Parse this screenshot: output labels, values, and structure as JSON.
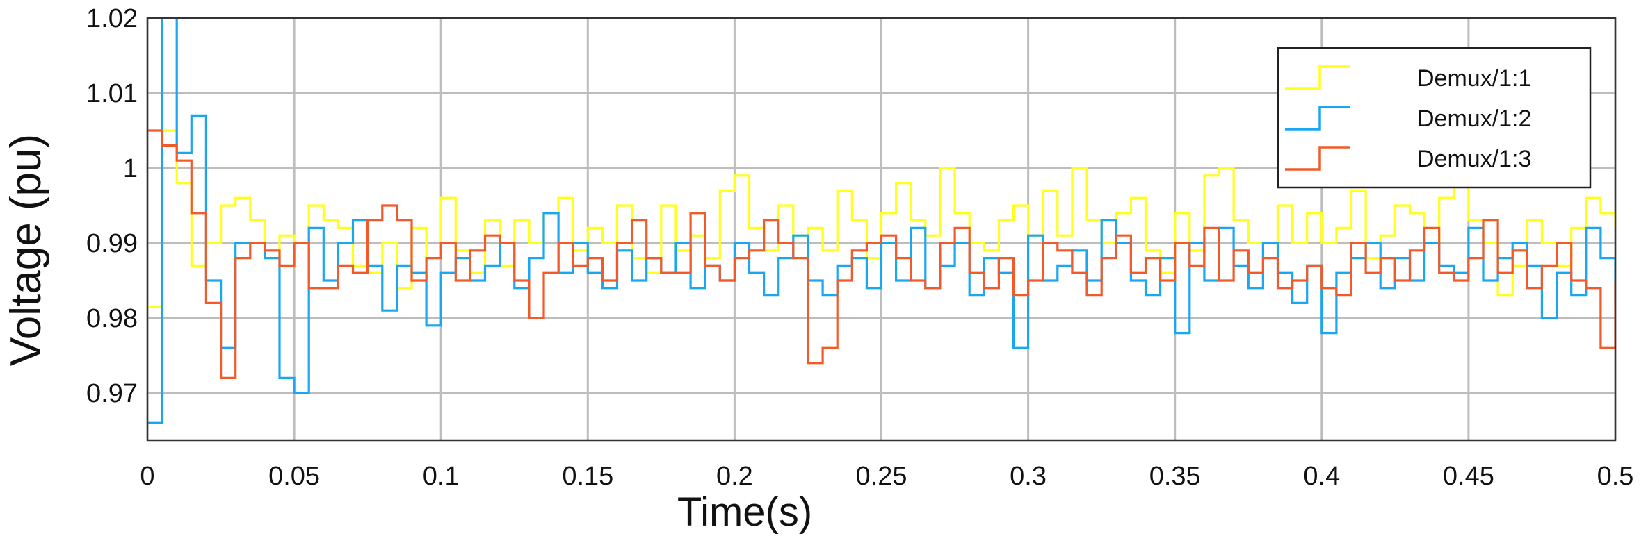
{
  "chart_data": {
    "type": "line",
    "title": "",
    "xlabel": "Time(s)",
    "ylabel": "Voltage (pu)",
    "xlim": [
      0,
      0.5
    ],
    "ylim": [
      0.9637,
      1.02
    ],
    "grid": true,
    "legend_position": "top-right",
    "x_ticks": [
      {
        "value": 0,
        "label": "0"
      },
      {
        "value": 0.05,
        "label": "0.05"
      },
      {
        "value": 0.1,
        "label": "0.1"
      },
      {
        "value": 0.15,
        "label": "0.15"
      },
      {
        "value": 0.2,
        "label": "0.2"
      },
      {
        "value": 0.25,
        "label": "0.25"
      },
      {
        "value": 0.3,
        "label": "0.3"
      },
      {
        "value": 0.35,
        "label": "0.35"
      },
      {
        "value": 0.4,
        "label": "0.4"
      },
      {
        "value": 0.45,
        "label": "0.45"
      },
      {
        "value": 0.5,
        "label": "0.5"
      }
    ],
    "y_ticks": [
      {
        "value": 0.97,
        "label": "0.97"
      },
      {
        "value": 0.98,
        "label": "0.98"
      },
      {
        "value": 0.99,
        "label": "0.99"
      },
      {
        "value": 1.0,
        "label": "1"
      },
      {
        "value": 1.01,
        "label": "1.01"
      },
      {
        "value": 1.02,
        "label": "1.02"
      }
    ],
    "x": [
      0,
      0.005,
      0.01,
      0.015,
      0.02,
      0.025,
      0.03,
      0.035,
      0.04,
      0.045,
      0.05,
      0.055,
      0.06,
      0.065,
      0.07,
      0.075,
      0.08,
      0.085,
      0.09,
      0.095,
      0.1,
      0.105,
      0.11,
      0.115,
      0.12,
      0.125,
      0.13,
      0.135,
      0.14,
      0.145,
      0.15,
      0.155,
      0.16,
      0.165,
      0.17,
      0.175,
      0.18,
      0.185,
      0.19,
      0.195,
      0.2,
      0.205,
      0.21,
      0.215,
      0.22,
      0.225,
      0.23,
      0.235,
      0.24,
      0.245,
      0.25,
      0.255,
      0.26,
      0.265,
      0.27,
      0.275,
      0.28,
      0.285,
      0.29,
      0.295,
      0.3,
      0.305,
      0.31,
      0.315,
      0.32,
      0.325,
      0.33,
      0.335,
      0.34,
      0.345,
      0.35,
      0.355,
      0.36,
      0.365,
      0.37,
      0.375,
      0.38,
      0.385,
      0.39,
      0.395,
      0.4,
      0.405,
      0.41,
      0.415,
      0.42,
      0.425,
      0.43,
      0.435,
      0.44,
      0.445,
      0.45,
      0.455,
      0.46,
      0.465,
      0.47,
      0.475,
      0.48,
      0.485,
      0.49,
      0.495,
      0.5
    ],
    "series": [
      {
        "name": "Demux/1:1",
        "color": "#ffff1a",
        "values": [
          0.9815,
          1.005,
          0.998,
          0.987,
          0.99,
          0.995,
          0.996,
          0.993,
          0.988,
          0.991,
          0.99,
          0.995,
          0.993,
          0.992,
          0.987,
          0.986,
          0.99,
          0.984,
          0.992,
          0.988,
          0.996,
          0.989,
          0.986,
          0.993,
          0.987,
          0.993,
          0.99,
          0.994,
          0.996,
          0.989,
          0.992,
          0.99,
          0.995,
          0.988,
          0.986,
          0.995,
          0.989,
          0.991,
          0.988,
          0.997,
          0.999,
          0.992,
          0.989,
          0.995,
          0.991,
          0.992,
          0.989,
          0.997,
          0.993,
          0.988,
          0.994,
          0.998,
          0.993,
          0.991,
          1.0,
          0.994,
          0.99,
          0.989,
          0.993,
          0.995,
          0.991,
          0.997,
          0.991,
          1.0,
          0.993,
          0.99,
          0.994,
          0.996,
          0.989,
          0.986,
          0.994,
          0.989,
          0.999,
          1.0,
          0.993,
          0.99,
          0.988,
          0.995,
          0.99,
          0.994,
          0.99,
          0.992,
          0.997,
          0.988,
          0.991,
          0.995,
          0.994,
          0.99,
          0.996,
          0.999,
          0.993,
          0.99,
          0.983,
          0.987,
          0.993,
          0.99,
          0.987,
          0.992,
          0.996,
          0.994,
          0.992
        ]
      },
      {
        "name": "Demux/1:2",
        "color": "#1aa6f0",
        "values": [
          0.966,
          1.02,
          1.002,
          1.007,
          0.985,
          0.976,
          0.99,
          0.99,
          0.988,
          0.972,
          0.97,
          0.992,
          0.985,
          0.99,
          0.993,
          0.987,
          0.981,
          0.987,
          0.986,
          0.979,
          0.986,
          0.988,
          0.985,
          0.987,
          0.99,
          0.984,
          0.988,
          0.994,
          0.986,
          0.99,
          0.986,
          0.984,
          0.989,
          0.985,
          0.988,
          0.986,
          0.99,
          0.984,
          0.987,
          0.985,
          0.99,
          0.986,
          0.983,
          0.988,
          0.991,
          0.985,
          0.983,
          0.987,
          0.988,
          0.984,
          0.99,
          0.985,
          0.992,
          0.984,
          0.987,
          0.99,
          0.983,
          0.988,
          0.986,
          0.976,
          0.991,
          0.985,
          0.987,
          0.989,
          0.985,
          0.993,
          0.99,
          0.985,
          0.983,
          0.988,
          0.978,
          0.99,
          0.985,
          0.992,
          0.987,
          0.984,
          0.99,
          0.986,
          0.982,
          0.987,
          0.978,
          0.986,
          0.988,
          0.99,
          0.984,
          0.988,
          0.985,
          0.99,
          0.987,
          0.986,
          0.992,
          0.985,
          0.988,
          0.99,
          0.987,
          0.98,
          0.986,
          0.983,
          0.992,
          0.988,
          0.982
        ]
      },
      {
        "name": "Demux/1:3",
        "color": "#f25a2a",
        "values": [
          1.005,
          1.003,
          1.001,
          0.994,
          0.982,
          0.972,
          0.988,
          0.99,
          0.989,
          0.987,
          0.99,
          0.984,
          0.984,
          0.987,
          0.986,
          0.993,
          0.995,
          0.993,
          0.985,
          0.988,
          0.99,
          0.985,
          0.989,
          0.991,
          0.99,
          0.985,
          0.98,
          0.986,
          0.99,
          0.987,
          0.988,
          0.985,
          0.99,
          0.993,
          0.988,
          0.986,
          0.986,
          0.994,
          0.987,
          0.985,
          0.988,
          0.989,
          0.993,
          0.99,
          0.988,
          0.974,
          0.976,
          0.985,
          0.989,
          0.99,
          0.991,
          0.988,
          0.985,
          0.984,
          0.99,
          0.992,
          0.986,
          0.984,
          0.988,
          0.983,
          0.985,
          0.99,
          0.989,
          0.986,
          0.983,
          0.988,
          0.991,
          0.986,
          0.988,
          0.985,
          0.99,
          0.987,
          0.992,
          0.985,
          0.989,
          0.986,
          0.988,
          0.984,
          0.985,
          0.987,
          0.984,
          0.983,
          0.99,
          0.986,
          0.988,
          0.985,
          0.989,
          0.992,
          0.986,
          0.985,
          0.988,
          0.993,
          0.986,
          0.989,
          0.984,
          0.987,
          0.99,
          0.985,
          0.984,
          0.976,
          0.985
        ]
      }
    ]
  }
}
